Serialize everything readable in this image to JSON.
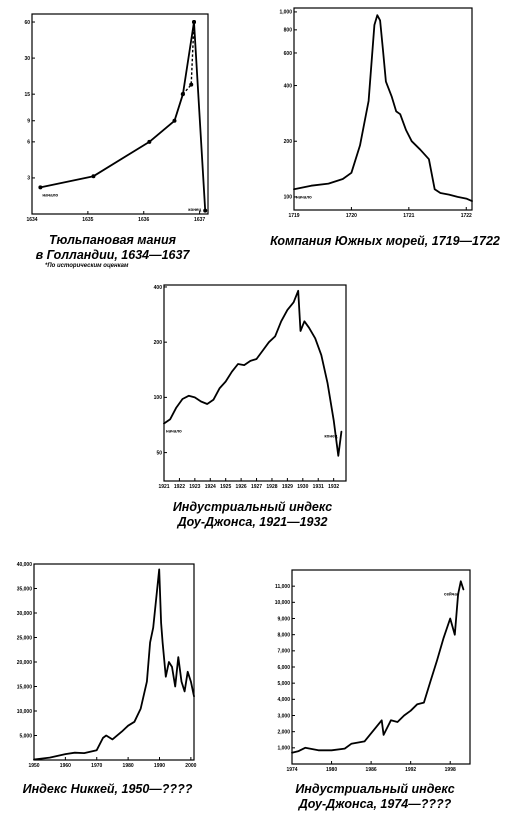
{
  "footnote": "*По историческим оценкам",
  "chart_data": [
    {
      "id": "tulip",
      "type": "line",
      "caption_line1": "Тюльпановая мания",
      "caption_line2": "в Голландии, 1634—1637",
      "scale": "log",
      "ylim": [
        1.5,
        70
      ],
      "yticks": [
        3,
        6,
        9,
        15,
        30,
        60
      ],
      "xlim": [
        1634,
        1637.15
      ],
      "xticks": [
        1634,
        1635,
        1636,
        1637
      ],
      "xtick_labels": [
        "1634",
        "1635",
        "1636",
        "1637"
      ],
      "start_label": "начало",
      "end_label": "конец",
      "series": [
        {
          "style": "solid",
          "markers": true,
          "x": [
            1634.15,
            1635.1,
            1636.1,
            1636.55,
            1636.7,
            1636.9,
            1637.1
          ],
          "y": [
            2.5,
            3.1,
            6,
            9,
            15,
            60,
            1.6
          ]
        },
        {
          "style": "dashed",
          "markers": true,
          "x": [
            1636.7,
            1636.85,
            1636.9
          ],
          "y": [
            15,
            18,
            60
          ]
        }
      ]
    },
    {
      "id": "southsea",
      "type": "line",
      "caption_line1": "Компания Южных морей, 1719—1722",
      "scale": "log",
      "ylim": [
        85,
        1050
      ],
      "yticks": [
        100,
        200,
        400,
        600,
        800,
        1000
      ],
      "xlim": [
        1719,
        1722.1
      ],
      "xticks": [
        1719,
        1720,
        1721,
        1722
      ],
      "xtick_labels": [
        "1719",
        "1720",
        "1721",
        "1722"
      ],
      "start_label": "начало",
      "series": [
        {
          "style": "solid",
          "x": [
            1719.0,
            1719.3,
            1719.6,
            1719.85,
            1720.0,
            1720.15,
            1720.3,
            1720.4,
            1720.45,
            1720.5,
            1720.55,
            1720.6,
            1720.7,
            1720.78,
            1720.85,
            1720.95,
            1721.05,
            1721.2,
            1721.35,
            1721.45,
            1721.55,
            1721.7,
            1721.85,
            1722.0,
            1722.1
          ],
          "y": [
            110,
            115,
            118,
            125,
            135,
            190,
            330,
            850,
            960,
            900,
            620,
            420,
            350,
            290,
            280,
            230,
            200,
            180,
            160,
            110,
            105,
            103,
            100,
            98,
            95
          ]
        }
      ]
    },
    {
      "id": "dow1921",
      "type": "line",
      "caption_line1": "Индустриальный индекс",
      "caption_line2": "Доу-Джонса, 1921—1932",
      "scale": "log",
      "ylim": [
        35,
        410
      ],
      "yticks": [
        50,
        100,
        200,
        400
      ],
      "xlim": [
        1921,
        1932.8
      ],
      "xticks": [
        1921,
        1922,
        1923,
        1924,
        1925,
        1926,
        1927,
        1928,
        1929,
        1930,
        1931,
        1932
      ],
      "xtick_labels": [
        "1921",
        "1922",
        "1923",
        "1924",
        "1925",
        "1926",
        "1927",
        "1928",
        "1929",
        "1930",
        "1931",
        "1932"
      ],
      "start_label": "начало",
      "end_label": "конец",
      "series": [
        {
          "style": "solid",
          "x": [
            1921.0,
            1921.4,
            1921.8,
            1922.2,
            1922.6,
            1923.0,
            1923.4,
            1923.8,
            1924.2,
            1924.6,
            1925.0,
            1925.4,
            1925.8,
            1926.2,
            1926.6,
            1927.0,
            1927.4,
            1927.8,
            1928.2,
            1928.6,
            1929.0,
            1929.4,
            1929.7,
            1929.85,
            1930.1,
            1930.4,
            1930.8,
            1931.2,
            1931.6,
            1932.0,
            1932.3,
            1932.5
          ],
          "y": [
            72,
            76,
            88,
            98,
            102,
            100,
            95,
            92,
            97,
            112,
            122,
            138,
            152,
            150,
            158,
            162,
            180,
            200,
            215,
            260,
            300,
            330,
            381,
            230,
            260,
            240,
            210,
            170,
            120,
            75,
            48,
            65
          ]
        }
      ]
    },
    {
      "id": "nikkei",
      "type": "line",
      "caption_line1": "Индекс Никкей, 1950—????",
      "scale": "linear",
      "ylim": [
        0,
        40000
      ],
      "yticks": [
        5000,
        10000,
        15000,
        20000,
        25000,
        30000,
        35000,
        40000
      ],
      "xlim": [
        1950,
        2001
      ],
      "xticks": [
        1950,
        1960,
        1970,
        1980,
        1990,
        2000
      ],
      "xtick_labels": [
        "1950",
        "1960",
        "1970",
        "1980",
        "1990",
        "2000"
      ],
      "series": [
        {
          "style": "solid",
          "x": [
            1950,
            1955,
            1960,
            1963,
            1966,
            1970,
            1972,
            1973,
            1975,
            1978,
            1980,
            1982,
            1984,
            1986,
            1987,
            1988,
            1989.9,
            1990.5,
            1991,
            1992,
            1993,
            1994,
            1995,
            1996,
            1997,
            1998,
            1999,
            2000,
            2001
          ],
          "y": [
            100,
            500,
            1200,
            1500,
            1400,
            2000,
            4500,
            5000,
            4200,
            5800,
            7000,
            7800,
            10500,
            16000,
            24000,
            27000,
            38900,
            28000,
            24000,
            17000,
            20000,
            19000,
            15000,
            21000,
            16000,
            14000,
            18000,
            16000,
            13000
          ]
        }
      ]
    },
    {
      "id": "dow1974",
      "type": "line",
      "caption_line1": "Индустриальный индекс",
      "caption_line2": "Доу-Джонса, 1974—????",
      "scale": "linear",
      "ylim": [
        0,
        12000
      ],
      "yticks": [
        1000,
        2000,
        3000,
        4000,
        5000,
        6000,
        7000,
        8000,
        9000,
        10000,
        11000
      ],
      "xlim": [
        1974,
        2001
      ],
      "xticks": [
        1974,
        1980,
        1986,
        1992,
        1998
      ],
      "xtick_labels": [
        "1974",
        "1980",
        "1986",
        "1992",
        "1998"
      ],
      "end_label": "сейчас",
      "series": [
        {
          "style": "solid",
          "x": [
            1974,
            1975,
            1976,
            1978,
            1980,
            1982,
            1983,
            1985,
            1987.6,
            1987.9,
            1989,
            1990,
            1991,
            1992,
            1993,
            1994,
            1995,
            1996,
            1997,
            1998,
            1998.7,
            1999.2,
            1999.6,
            2000
          ],
          "y": [
            700,
            800,
            1000,
            850,
            850,
            950,
            1250,
            1400,
            2700,
            1800,
            2700,
            2600,
            3000,
            3300,
            3700,
            3800,
            5100,
            6400,
            7800,
            9000,
            8000,
            10500,
            11300,
            10800
          ]
        }
      ]
    }
  ]
}
